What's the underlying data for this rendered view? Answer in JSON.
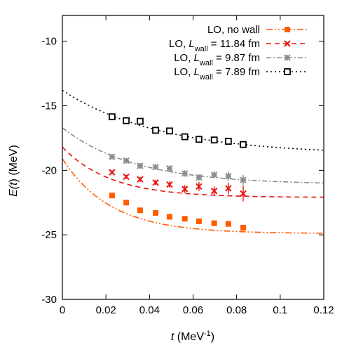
{
  "chart_data": {
    "type": "scatter",
    "title": "",
    "xlabel": {
      "var": "t",
      "unit_open": " (MeV",
      "unit_exp": "-1",
      "unit_close": ")"
    },
    "ylabel": {
      "var_E": "E(",
      "var_t": "t",
      "rest": ") (MeV)"
    },
    "xlim": [
      0,
      0.12
    ],
    "ylim": [
      -30,
      -8
    ],
    "x_ticks": [
      0,
      0.02,
      0.04,
      0.06,
      0.08,
      0.1,
      0.12
    ],
    "x_tick_labels": [
      "0",
      "0.02",
      "0.04",
      "0.06",
      "0.08",
      "0.1",
      "0.12"
    ],
    "y_ticks": [
      -30,
      -25,
      -20,
      -15,
      -10
    ],
    "y_tick_labels": [
      "-30",
      "-25",
      "-20",
      "-15",
      "-10"
    ],
    "legend_position": "top-right",
    "series": [
      {
        "name": "LO, no wall",
        "legend": {
          "prefix": "LO, no wall",
          "sub": "",
          "suffix": ""
        },
        "color": "#ff5a00",
        "marker": "filled-square",
        "dash": "9,3,2,3,2,3",
        "points": [
          {
            "x": 0.0228,
            "y": -21.95,
            "err": 0.1
          },
          {
            "x": 0.0293,
            "y": -22.5,
            "err": 0.1
          },
          {
            "x": 0.0357,
            "y": -23.1,
            "err": 0.1
          },
          {
            "x": 0.0428,
            "y": -23.3,
            "err": 0.1
          },
          {
            "x": 0.0492,
            "y": -23.6,
            "err": 0.1
          },
          {
            "x": 0.0562,
            "y": -23.75,
            "err": 0.1
          },
          {
            "x": 0.0627,
            "y": -23.95,
            "err": 0.1
          },
          {
            "x": 0.0697,
            "y": -24.1,
            "err": 0.1
          },
          {
            "x": 0.0762,
            "y": -24.15,
            "err": 0.1
          },
          {
            "x": 0.083,
            "y": -24.45,
            "err": 0.2
          }
        ],
        "fit": {
          "a": -24.9,
          "b": 5.8,
          "c": 45
        }
      },
      {
        "name": "LO, L_wall = 11.84 fm",
        "legend": {
          "prefix": "LO, ",
          "var": "L",
          "sub": "wall",
          "suffix": " = 11.84 fm"
        },
        "color": "#e8120c",
        "marker": "x",
        "dash": "7,5",
        "points": [
          {
            "x": 0.0228,
            "y": -20.15,
            "err": 0.15
          },
          {
            "x": 0.0293,
            "y": -20.5,
            "err": 0.15
          },
          {
            "x": 0.0357,
            "y": -20.7,
            "err": 0.2
          },
          {
            "x": 0.0428,
            "y": -20.95,
            "err": 0.2
          },
          {
            "x": 0.0492,
            "y": -21.1,
            "err": 0.25
          },
          {
            "x": 0.0562,
            "y": -21.45,
            "err": 0.3
          },
          {
            "x": 0.0627,
            "y": -21.25,
            "err": 0.35
          },
          {
            "x": 0.0697,
            "y": -21.6,
            "err": 0.35
          },
          {
            "x": 0.0762,
            "y": -21.4,
            "err": 0.45
          },
          {
            "x": 0.083,
            "y": -21.8,
            "err": 0.6
          }
        ],
        "fit": {
          "a": -22.1,
          "b": 3.9,
          "c": 45
        }
      },
      {
        "name": "LO, L_wall = 9.87 fm",
        "legend": {
          "prefix": "LO, ",
          "var": "L",
          "sub": "wall",
          "suffix": " = 9.87 fm"
        },
        "color": "#8c8c8c",
        "marker": "star",
        "dash": "7,3,2,3",
        "points": [
          {
            "x": 0.0228,
            "y": -18.95,
            "err": 0.1
          },
          {
            "x": 0.0293,
            "y": -19.25,
            "err": 0.15
          },
          {
            "x": 0.0357,
            "y": -19.65,
            "err": 0.15
          },
          {
            "x": 0.0428,
            "y": -19.75,
            "err": 0.2
          },
          {
            "x": 0.0492,
            "y": -19.85,
            "err": 0.2
          },
          {
            "x": 0.0562,
            "y": -20.25,
            "err": 0.25
          },
          {
            "x": 0.0627,
            "y": -20.55,
            "err": 0.25
          },
          {
            "x": 0.0697,
            "y": -20.35,
            "err": 0.3
          },
          {
            "x": 0.0762,
            "y": -20.45,
            "err": 0.35
          },
          {
            "x": 0.083,
            "y": -20.75,
            "err": 0.4
          }
        ],
        "fit": {
          "a": -21.1,
          "b": 4.4,
          "c": 30
        }
      },
      {
        "name": "LO, L_wall = 7.89 fm",
        "legend": {
          "prefix": "LO, ",
          "var": "L",
          "sub": "wall",
          "suffix": " = 7.89 fm"
        },
        "color": "#000000",
        "marker": "open-square",
        "dash": "2,4",
        "points": [
          {
            "x": 0.0228,
            "y": -15.85,
            "err": 0.1
          },
          {
            "x": 0.0293,
            "y": -16.15,
            "err": 0.1
          },
          {
            "x": 0.0357,
            "y": -16.2,
            "err": 0.1
          },
          {
            "x": 0.0428,
            "y": -16.9,
            "err": 0.15
          },
          {
            "x": 0.0492,
            "y": -16.95,
            "err": 0.15
          },
          {
            "x": 0.0562,
            "y": -17.4,
            "err": 0.15
          },
          {
            "x": 0.0627,
            "y": -17.6,
            "err": 0.2
          },
          {
            "x": 0.0697,
            "y": -17.65,
            "err": 0.2
          },
          {
            "x": 0.0762,
            "y": -17.75,
            "err": 0.2
          },
          {
            "x": 0.083,
            "y": -18.0,
            "err": 0.2
          }
        ],
        "fit": {
          "a": -18.8,
          "b": 5.0,
          "c": 22
        }
      }
    ]
  }
}
